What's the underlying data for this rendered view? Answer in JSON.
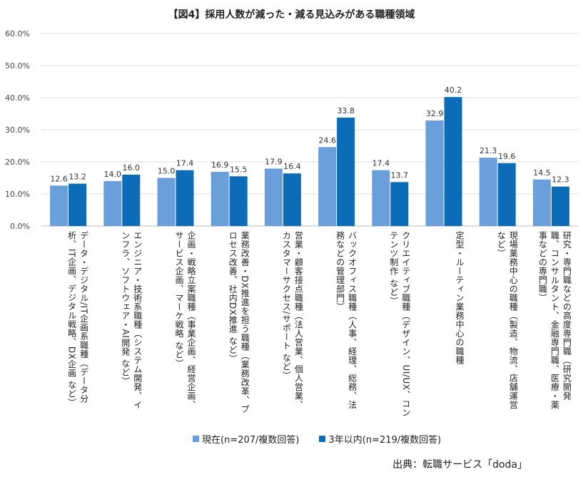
{
  "chart_data": {
    "type": "bar",
    "title": "【図4】採用人数が減った・減る見込みがある職種領域",
    "categories": [
      "データ・デジタル/IT企画系職種（データ分析、IT企画、デジタル戦略、DX企画 など）",
      "エンジニア・技術系職種（システム開発、インフラ、ソフトウェア・AI開発 など）",
      "企画・戦略立案職種（事業企画、経営企画、サービス企画、マーケ戦略 など）",
      "業務改善・DX推進を担う職種（業務改革、プロセス改善、社内DX推進 など）",
      "営業・顧客接点職種（法人営業、個人営業、カスタマーサクセス/サポート など）",
      "バックオフィス職種（人事、経理、総務、法務などの管理部門）",
      "クリエイティブ職種（デザイン、UI/UX、コンテンツ制作 など）",
      "定型・ルーティン業務中心の職種",
      "現場業務中心の職種（製造、物流、店舗運営など）",
      "研究・専門職などの高度専門職（研究開発職、コンサルタント、金融専門職、医療・薬事などの専門職）"
    ],
    "series": [
      {
        "name": "現在(n=207/複数回答)",
        "color": "#6a9fdc",
        "values": [
          12.6,
          14.0,
          15.0,
          16.9,
          17.9,
          24.6,
          17.4,
          32.9,
          21.3,
          14.5
        ]
      },
      {
        "name": "3年以内(n=219/複数回答)",
        "color": "#0d6cb8",
        "values": [
          13.2,
          16.0,
          17.4,
          15.5,
          16.4,
          33.8,
          13.7,
          40.2,
          19.6,
          12.3
        ]
      }
    ],
    "yticks": [
      "0.0%",
      "10.0%",
      "20.0%",
      "30.0%",
      "40.0%",
      "50.0%",
      "60.0%"
    ],
    "ylim": [
      0,
      60
    ],
    "grid": true,
    "legend": "bottom",
    "source": "出典：転職サービス「doda」"
  }
}
